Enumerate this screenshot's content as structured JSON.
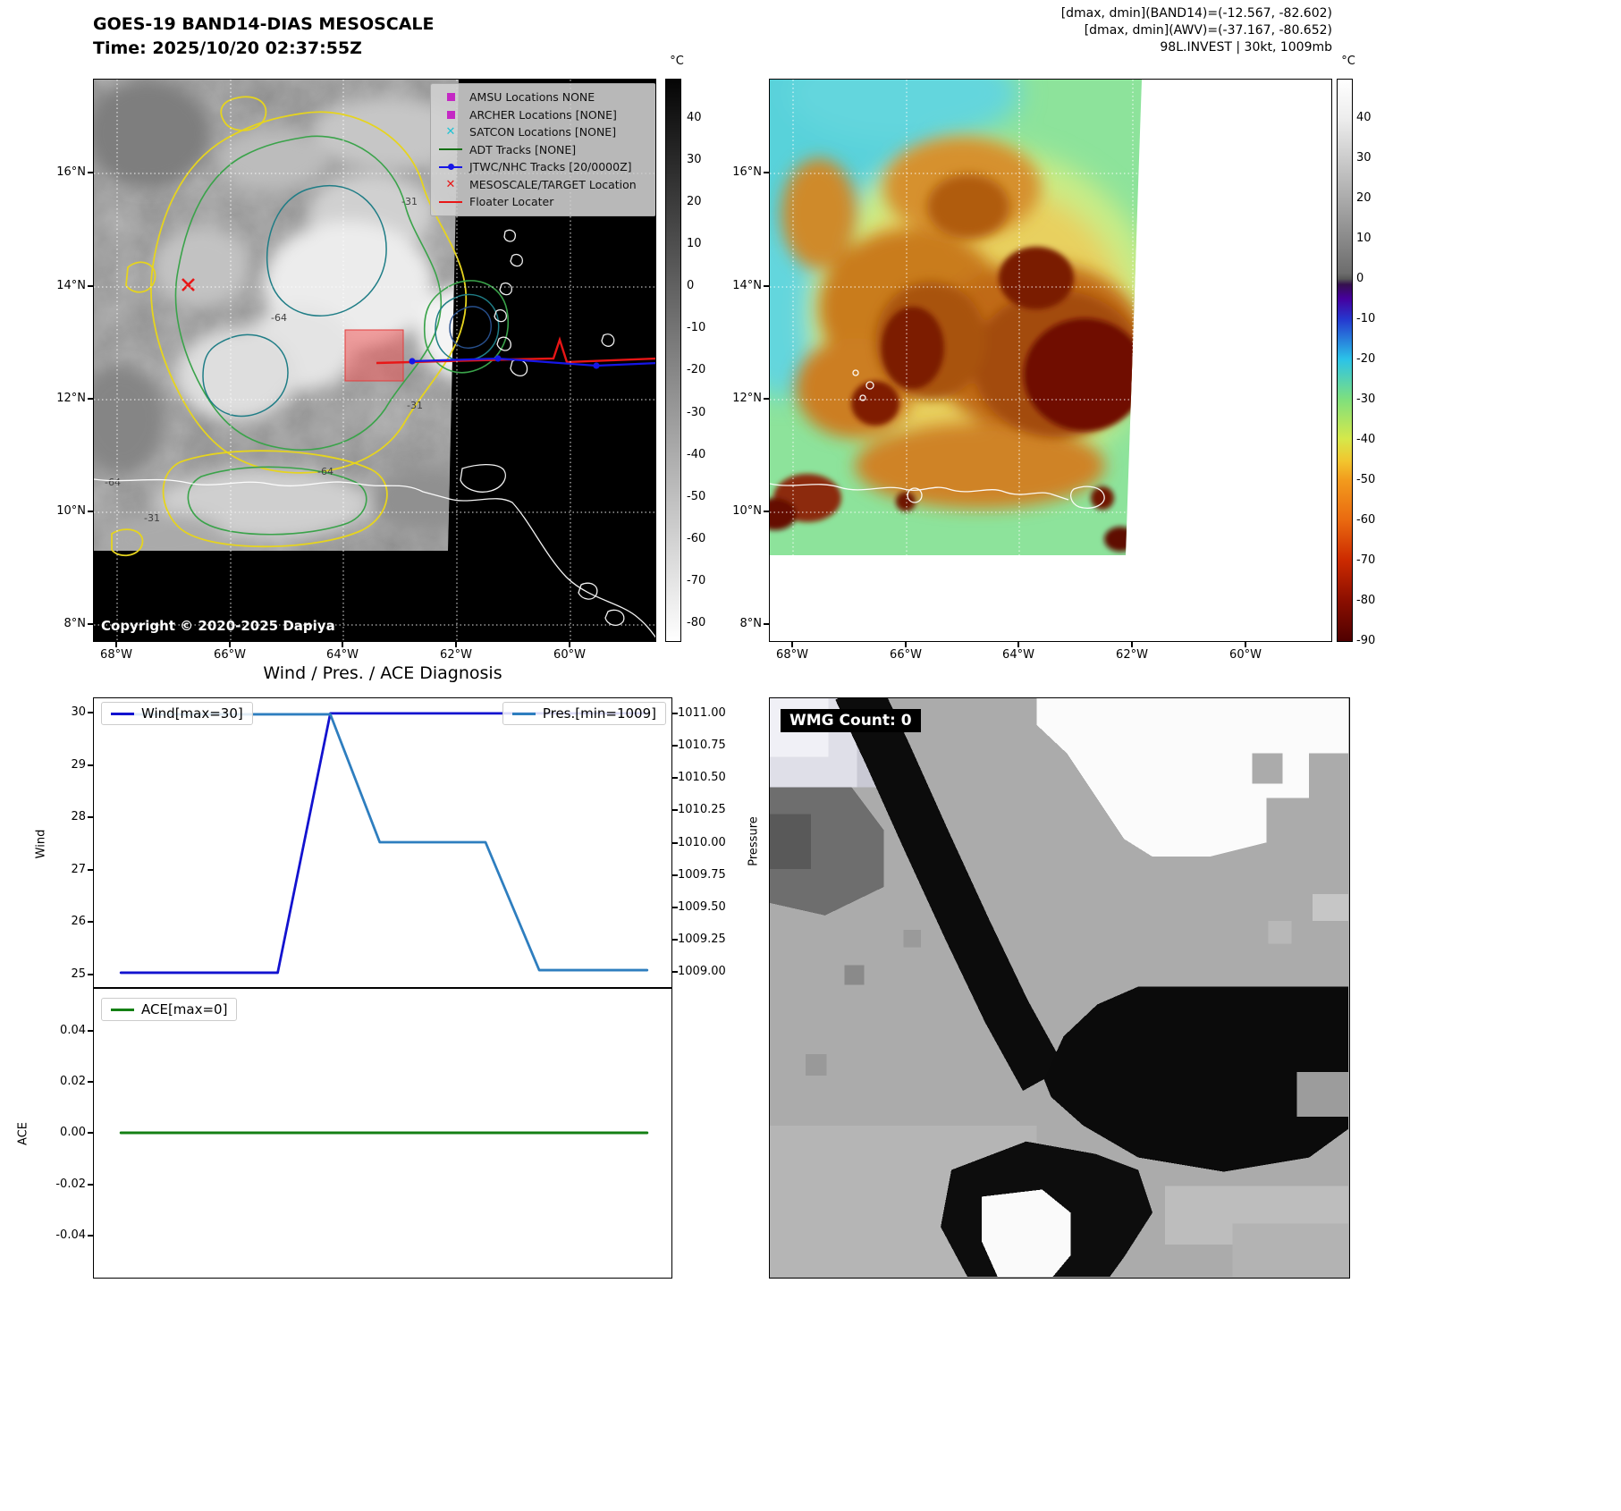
{
  "panel_band14": {
    "title_line1": "GOES-19 BAND14-DIAS MESOSCALE",
    "title_line2": "Time: 2025/10/20 02:37:55Z",
    "copyright": "Copyright © 2020-2025 Dapiya",
    "legend": {
      "items": [
        {
          "label": "AMSU Locations NONE",
          "marker": "square",
          "color": "#c428c4"
        },
        {
          "label": "ARCHER Locations [NONE]",
          "marker": "square",
          "color": "#c428c4"
        },
        {
          "label": "SATCON Locations [NONE]",
          "marker": "x",
          "color": "#1fc3d4"
        },
        {
          "label": "ADT Tracks [NONE]",
          "marker": "line",
          "color": "#157015"
        },
        {
          "label": "JTWC/NHC Tracks [20/0000Z]",
          "marker": "line-dot",
          "color": "#1616e6"
        },
        {
          "label": "MESOSCALE/TARGET Location",
          "marker": "x",
          "color": "#e81616"
        },
        {
          "label": "Floater Locater",
          "marker": "line",
          "color": "#e81616"
        }
      ]
    },
    "contour_labels": [
      "-64",
      "-31",
      "-31",
      "-64",
      "-31",
      "-64"
    ],
    "colorbar": {
      "unit": "°C",
      "ticks": [
        "40",
        "30",
        "20",
        "10",
        "0",
        "-10",
        "-20",
        "-30",
        "-40",
        "-50",
        "-60",
        "-70",
        "-80"
      ]
    },
    "lat_ticks": [
      "16°N",
      "14°N",
      "12°N",
      "10°N",
      "8°N"
    ],
    "lon_ticks": [
      "68°W",
      "66°W",
      "64°W",
      "62°W",
      "60°W"
    ]
  },
  "panel_awv": {
    "header_line1": "[dmax, dmin](BAND14)=(-12.567, -82.602)",
    "header_line2": "[dmax, dmin](AWV)=(-37.167, -80.652)",
    "header_line3": "98L.INVEST | 30kt, 1009mb",
    "colorbar": {
      "unit": "°C",
      "ticks": [
        "40",
        "30",
        "20",
        "10",
        "0",
        "-10",
        "-20",
        "-30",
        "-40",
        "-50",
        "-60",
        "-70",
        "-80",
        "-90"
      ]
    },
    "lat_ticks": [
      "16°N",
      "14°N",
      "12°N",
      "10°N",
      "8°N"
    ],
    "lon_ticks": [
      "68°W",
      "66°W",
      "64°W",
      "62°W",
      "60°W"
    ]
  },
  "diagnosis": {
    "title": "Wind / Pres. / ACE Diagnosis",
    "wind_legend": "Wind[max=30]",
    "pres_legend": "Pres.[min=1009]",
    "ace_legend": "ACE[max=0]",
    "ylabel_wind": "Wind",
    "ylabel_pressure": "Pressure",
    "ylabel_ace": "ACE",
    "wind_ticks": [
      "30",
      "29",
      "28",
      "27",
      "26",
      "25"
    ],
    "pressure_ticks": [
      "1011.00",
      "1010.75",
      "1010.50",
      "1010.25",
      "1010.00",
      "1009.75",
      "1009.50",
      "1009.25",
      "1009.00"
    ],
    "ace_ticks": [
      "0.04",
      "0.02",
      "0.00",
      "-0.02",
      "-0.04"
    ]
  },
  "wmg": {
    "label": "WMG Count: 0"
  },
  "chart_data": [
    {
      "type": "line",
      "title": "Wind / Pres. / ACE Diagnosis",
      "ylabel_left": "Wind",
      "ylabel_right": "Pressure",
      "yticks_left": [
        30,
        29,
        28,
        27,
        26,
        25
      ],
      "yticks_right": [
        1011.0,
        1010.75,
        1010.5,
        1010.25,
        1010.0,
        1009.75,
        1009.5,
        1009.25,
        1009.0
      ],
      "legend_position": "upper-left and upper-right",
      "grid": false,
      "series": [
        {
          "name": "Wind[max=30]",
          "axis": "left",
          "color": "#1212cf",
          "width": 2.8,
          "ylim": [
            24.74,
            30.29
          ],
          "points": [
            [
              0,
              25
            ],
            [
              0.298,
              25
            ],
            [
              0.398,
              30
            ],
            [
              1,
              30
            ]
          ]
        },
        {
          "name": "Pres.[min=1009]",
          "axis": "right",
          "color": "#2e7ebf",
          "width": 2.8,
          "ylim": [
            1008.875,
            1011.125
          ],
          "points": [
            [
              0,
              1011
            ],
            [
              0.398,
              1011
            ],
            [
              0.492,
              1010
            ],
            [
              0.693,
              1010
            ],
            [
              0.795,
              1009
            ],
            [
              1,
              1009
            ]
          ]
        }
      ]
    },
    {
      "type": "line",
      "ylabel": "ACE",
      "yticks": [
        0.04,
        0.02,
        0.0,
        -0.02,
        -0.04
      ],
      "legend_position": "upper-left",
      "grid": false,
      "series": [
        {
          "name": "ACE[max=0]",
          "axis": "left",
          "color": "#148014",
          "width": 3,
          "ylim": [
            -0.0565,
            0.0565
          ],
          "points": [
            [
              0,
              0
            ],
            [
              1,
              0
            ]
          ]
        }
      ]
    }
  ]
}
